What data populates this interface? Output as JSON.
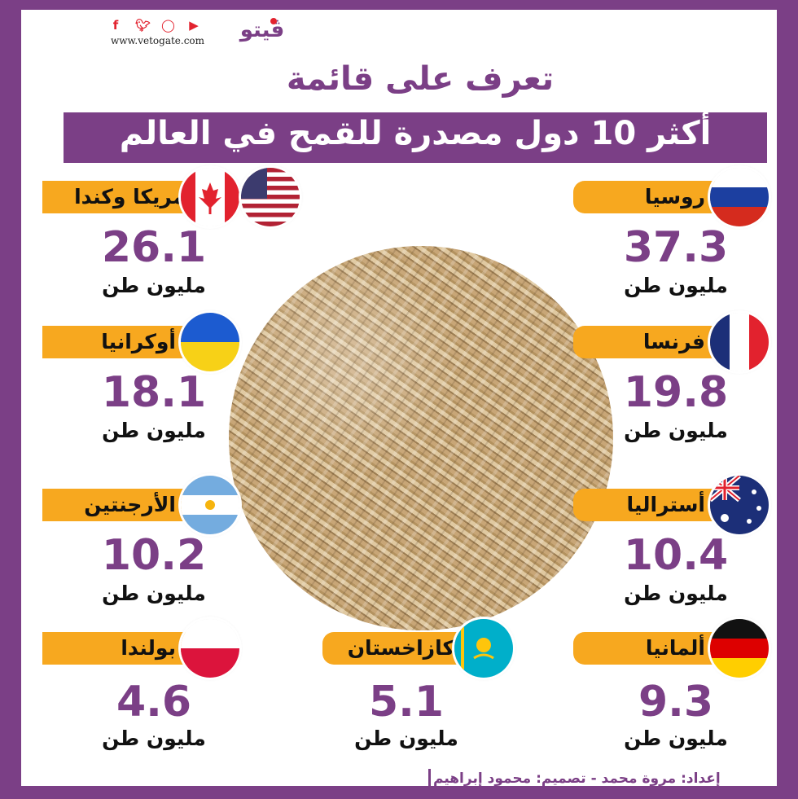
{
  "header": {
    "site_url": "www.vetogate.com",
    "logo_text": "ڤيتو",
    "title_line1": "تعرف على قائمة",
    "title_line2": "أكثر 10 دول مصدرة للقمح في العالم",
    "social_icons": [
      "facebook-icon",
      "twitter-icon",
      "instagram-icon",
      "youtube-icon"
    ]
  },
  "colors": {
    "purple": "#7b3f86",
    "orange": "#f7a81f",
    "red": "#e2222e"
  },
  "unit_label": "مليون طن",
  "countries": [
    {
      "name": "روسيا",
      "value": "37.3",
      "unit": "مليون طن"
    },
    {
      "name": "أمريكا وكندا",
      "value": "26.1",
      "unit": "مليون طن"
    },
    {
      "name": "فرنسا",
      "value": "19.8",
      "unit": "مليون طن"
    },
    {
      "name": "أوكرانيا",
      "value": "18.1",
      "unit": "مليون طن"
    },
    {
      "name": "أستراليا",
      "value": "10.4",
      "unit": "مليون طن"
    },
    {
      "name": "الأرجنتين",
      "value": "10.2",
      "unit": "مليون طن"
    },
    {
      "name": "ألمانيا",
      "value": "9.3",
      "unit": "مليون طن"
    },
    {
      "name": "كازاخستان",
      "value": "5.1",
      "unit": "مليون طن"
    },
    {
      "name": "بولندا",
      "value": "4.6",
      "unit": "مليون طن"
    }
  ],
  "credit": "إعداد: مروة محمد - تصميم: محمود إبراهيم"
}
